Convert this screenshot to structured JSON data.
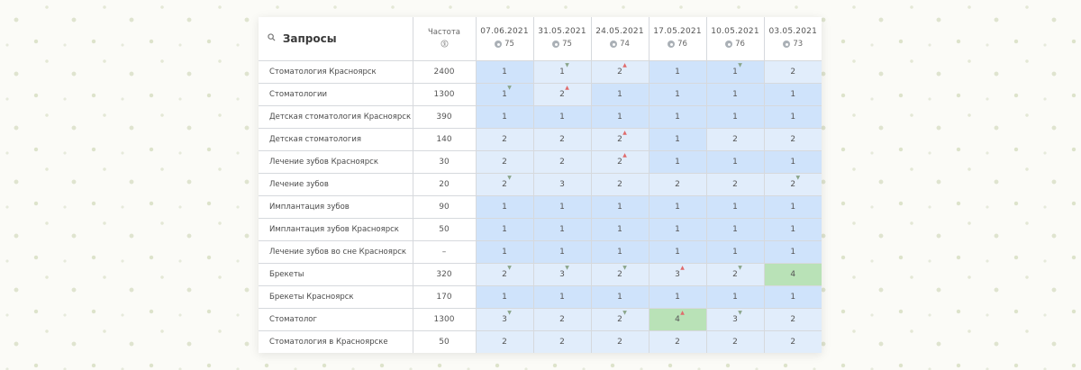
{
  "header": {
    "query_label": "Запросы",
    "freq_label": "Частота",
    "dates": [
      {
        "date": "07.06.2021",
        "avg": "75"
      },
      {
        "date": "31.05.2021",
        "avg": "75"
      },
      {
        "date": "24.05.2021",
        "avg": "74"
      },
      {
        "date": "17.05.2021",
        "avg": "76"
      },
      {
        "date": "10.05.2021",
        "avg": "76"
      },
      {
        "date": "03.05.2021",
        "avg": "73"
      }
    ]
  },
  "rows": [
    {
      "keyword": "Стоматология Красноярск",
      "freq": "2400",
      "cells": [
        {
          "v": "1",
          "c": "blue"
        },
        {
          "v": "1",
          "c": "light",
          "t": "dn"
        },
        {
          "v": "2",
          "c": "light",
          "t": "up"
        },
        {
          "v": "1",
          "c": "blue"
        },
        {
          "v": "1",
          "c": "blue",
          "t": "dn"
        },
        {
          "v": "2",
          "c": "light"
        }
      ]
    },
    {
      "keyword": "Стоматологии",
      "freq": "1300",
      "cells": [
        {
          "v": "1",
          "c": "blue",
          "t": "dn"
        },
        {
          "v": "2",
          "c": "light",
          "t": "up"
        },
        {
          "v": "1",
          "c": "blue"
        },
        {
          "v": "1",
          "c": "blue"
        },
        {
          "v": "1",
          "c": "blue"
        },
        {
          "v": "1",
          "c": "blue"
        }
      ]
    },
    {
      "keyword": "Детская стоматология Красноярск",
      "freq": "390",
      "cells": [
        {
          "v": "1",
          "c": "blue"
        },
        {
          "v": "1",
          "c": "blue"
        },
        {
          "v": "1",
          "c": "blue"
        },
        {
          "v": "1",
          "c": "blue"
        },
        {
          "v": "1",
          "c": "blue"
        },
        {
          "v": "1",
          "c": "blue"
        }
      ]
    },
    {
      "keyword": "Детская стоматология",
      "freq": "140",
      "cells": [
        {
          "v": "2",
          "c": "light"
        },
        {
          "v": "2",
          "c": "light"
        },
        {
          "v": "2",
          "c": "light",
          "t": "up"
        },
        {
          "v": "1",
          "c": "blue"
        },
        {
          "v": "2",
          "c": "light"
        },
        {
          "v": "2",
          "c": "light"
        }
      ]
    },
    {
      "keyword": "Лечение зубов Красноярск",
      "freq": "30",
      "cells": [
        {
          "v": "2",
          "c": "light"
        },
        {
          "v": "2",
          "c": "light"
        },
        {
          "v": "2",
          "c": "light",
          "t": "up"
        },
        {
          "v": "1",
          "c": "blue"
        },
        {
          "v": "1",
          "c": "blue"
        },
        {
          "v": "1",
          "c": "blue"
        }
      ]
    },
    {
      "keyword": "Лечение зубов",
      "freq": "20",
      "cells": [
        {
          "v": "2",
          "c": "light",
          "t": "dn"
        },
        {
          "v": "3",
          "c": "light"
        },
        {
          "v": "2",
          "c": "light"
        },
        {
          "v": "2",
          "c": "light"
        },
        {
          "v": "2",
          "c": "light"
        },
        {
          "v": "2",
          "c": "light",
          "t": "dn"
        }
      ]
    },
    {
      "keyword": "Имплантация зубов",
      "freq": "90",
      "cells": [
        {
          "v": "1",
          "c": "blue"
        },
        {
          "v": "1",
          "c": "blue"
        },
        {
          "v": "1",
          "c": "blue"
        },
        {
          "v": "1",
          "c": "blue"
        },
        {
          "v": "1",
          "c": "blue"
        },
        {
          "v": "1",
          "c": "blue"
        }
      ]
    },
    {
      "keyword": "Имплантация зубов Красноярск",
      "freq": "50",
      "cells": [
        {
          "v": "1",
          "c": "blue"
        },
        {
          "v": "1",
          "c": "blue"
        },
        {
          "v": "1",
          "c": "blue"
        },
        {
          "v": "1",
          "c": "blue"
        },
        {
          "v": "1",
          "c": "blue"
        },
        {
          "v": "1",
          "c": "blue"
        }
      ]
    },
    {
      "keyword": "Лечение зубов во сне Красноярск",
      "freq": "–",
      "cells": [
        {
          "v": "1",
          "c": "blue"
        },
        {
          "v": "1",
          "c": "blue"
        },
        {
          "v": "1",
          "c": "blue"
        },
        {
          "v": "1",
          "c": "blue"
        },
        {
          "v": "1",
          "c": "blue"
        },
        {
          "v": "1",
          "c": "blue"
        }
      ]
    },
    {
      "keyword": "Брекеты",
      "freq": "320",
      "cells": [
        {
          "v": "2",
          "c": "light",
          "t": "dn"
        },
        {
          "v": "3",
          "c": "light",
          "t": "dn"
        },
        {
          "v": "2",
          "c": "light",
          "t": "dn"
        },
        {
          "v": "3",
          "c": "light",
          "t": "up"
        },
        {
          "v": "2",
          "c": "light",
          "t": "dn"
        },
        {
          "v": "4",
          "c": "green"
        }
      ]
    },
    {
      "keyword": "Брекеты Красноярск",
      "freq": "170",
      "cells": [
        {
          "v": "1",
          "c": "blue"
        },
        {
          "v": "1",
          "c": "blue"
        },
        {
          "v": "1",
          "c": "blue"
        },
        {
          "v": "1",
          "c": "blue"
        },
        {
          "v": "1",
          "c": "blue"
        },
        {
          "v": "1",
          "c": "blue"
        }
      ]
    },
    {
      "keyword": "Стоматолог",
      "freq": "1300",
      "cells": [
        {
          "v": "3",
          "c": "light",
          "t": "dn"
        },
        {
          "v": "2",
          "c": "light"
        },
        {
          "v": "2",
          "c": "light",
          "t": "dn"
        },
        {
          "v": "4",
          "c": "green",
          "t": "up"
        },
        {
          "v": "3",
          "c": "light",
          "t": "dn"
        },
        {
          "v": "2",
          "c": "light"
        }
      ]
    },
    {
      "keyword": "Стоматология в Красноярске",
      "freq": "50",
      "cells": [
        {
          "v": "2",
          "c": "light"
        },
        {
          "v": "2",
          "c": "light"
        },
        {
          "v": "2",
          "c": "light"
        },
        {
          "v": "2",
          "c": "light"
        },
        {
          "v": "2",
          "c": "light"
        },
        {
          "v": "2",
          "c": "light"
        }
      ]
    }
  ]
}
